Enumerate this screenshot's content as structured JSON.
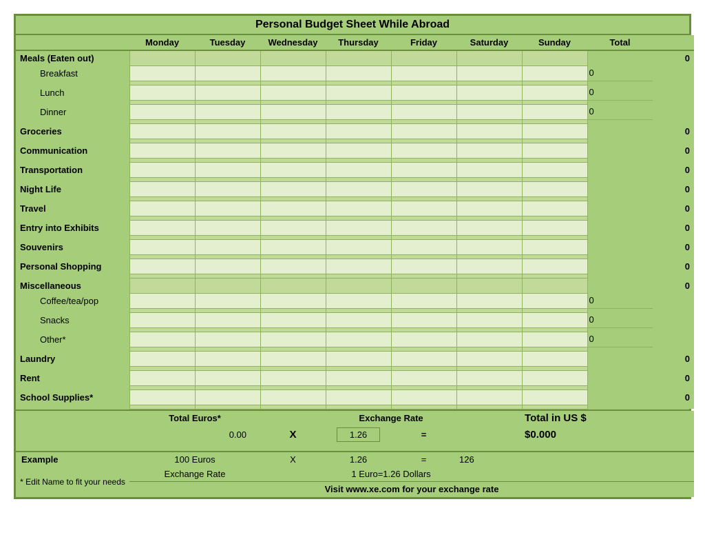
{
  "title": "Personal Budget Sheet While Abroad",
  "days": [
    "Monday",
    "Tuesday",
    "Wednesday",
    "Thursday",
    "Friday",
    "Saturday",
    "Sunday"
  ],
  "total_header": "Total",
  "categories": [
    {
      "name": "Meals (Eaten out)",
      "total": "0",
      "subs": [
        {
          "name": "Breakfast",
          "subtotal": "0"
        },
        {
          "name": "Lunch",
          "subtotal": "0"
        },
        {
          "name": "Dinner",
          "subtotal": "0"
        }
      ]
    },
    {
      "name": "Groceries",
      "total": "0"
    },
    {
      "name": "Communication",
      "total": "0"
    },
    {
      "name": "Transportation",
      "total": "0"
    },
    {
      "name": "Night Life",
      "total": "0"
    },
    {
      "name": "Travel",
      "total": "0"
    },
    {
      "name": "Entry into Exhibits",
      "total": "0"
    },
    {
      "name": "Souvenirs",
      "total": "0"
    },
    {
      "name": "Personal Shopping",
      "total": "0"
    },
    {
      "name": "Miscellaneous",
      "total": "0",
      "subs": [
        {
          "name": "Coffee/tea/pop",
          "subtotal": "0"
        },
        {
          "name": "Snacks",
          "subtotal": "0"
        },
        {
          "name": "Other*",
          "subtotal": "0"
        }
      ]
    },
    {
      "name": "Laundry",
      "total": "0"
    },
    {
      "name": "Rent",
      "total": "0"
    },
    {
      "name": "School Supplies*",
      "total": "0"
    }
  ],
  "calc": {
    "total_euros_label": "Total Euros*",
    "total_euros_value": "0.00",
    "x": "X",
    "exchange_rate_label": "Exchange Rate",
    "exchange_rate_value": "1.26",
    "equals": "=",
    "total_us_label": "Total in US $",
    "total_us_value": "$0.000"
  },
  "example": {
    "label": "Example",
    "euros": "100 Euros",
    "x": "X",
    "rate": "1.26",
    "equals": "=",
    "result": "126",
    "line2a": "Exchange Rate",
    "line2b": "1 Euro=1.26 Dollars"
  },
  "edit_note": "* Edit Name to fit your needs",
  "visit": "Visit www.xe.com for your exchange rate",
  "colors": {
    "outer_border": "#6b8e3d",
    "bg": "#a5cd7a",
    "input_cell": "#e3efce",
    "dark_cell": "#c1da9a",
    "grid": "#8fb35d"
  }
}
